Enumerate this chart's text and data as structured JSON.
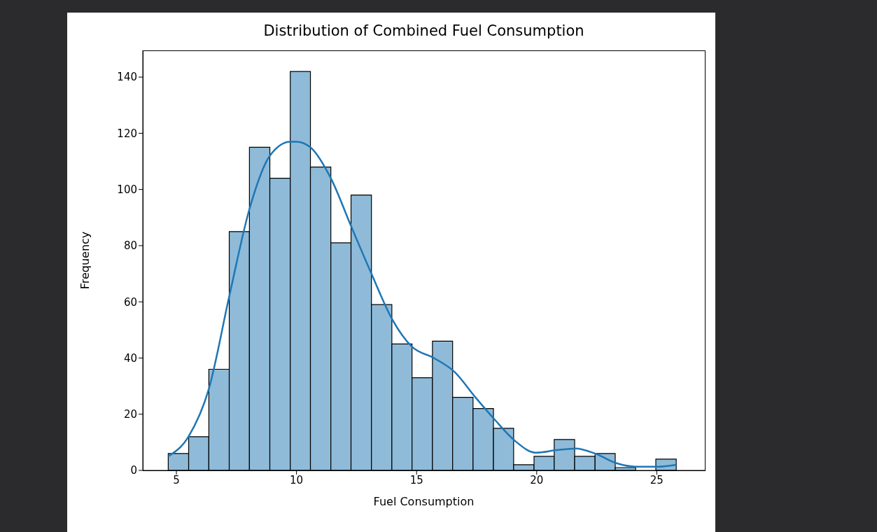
{
  "chart_data": {
    "type": "histogram",
    "title": "Distribution of Combined Fuel Consumption",
    "xlabel": "Fuel Consumption",
    "ylabel": "Frequency",
    "bins": [
      4.66,
      5.51,
      6.35,
      7.2,
      8.04,
      8.89,
      9.74,
      10.58,
      11.43,
      12.27,
      13.12,
      13.97,
      14.81,
      15.66,
      16.5,
      17.35,
      18.2,
      19.04,
      19.89,
      20.73,
      21.58,
      22.43,
      23.27,
      24.12,
      24.96,
      25.81
    ],
    "values": [
      6,
      12,
      36,
      85,
      115,
      104,
      142,
      108,
      81,
      98,
      59,
      45,
      33,
      46,
      26,
      22,
      15,
      2,
      5,
      11,
      5,
      6,
      1,
      0,
      4
    ],
    "color": "#8fbbd9",
    "xlim": [
      3.6,
      27.0
    ],
    "ylim": [
      0,
      149.5
    ],
    "xticks": [
      5,
      10,
      15,
      20,
      25
    ],
    "yticks": [
      0,
      20,
      40,
      60,
      80,
      100,
      120,
      140
    ],
    "series": [
      {
        "type": "line",
        "color": "#1f77b4",
        "x": [
          4.66,
          5.5,
          6.35,
          7.2,
          8.04,
          8.89,
          9.74,
          10.0,
          10.58,
          11.43,
          12.27,
          13.12,
          13.97,
          14.81,
          15.72,
          16.59,
          17.45,
          18.26,
          19.1,
          19.96,
          20.82,
          21.63,
          22.43,
          23.3,
          24.16,
          25.03,
          25.81
        ],
        "values": [
          5,
          12,
          29,
          62,
          93,
          112,
          117,
          117,
          115,
          104,
          87,
          70,
          54,
          44,
          40,
          35,
          26,
          18,
          10.5,
          6.3,
          7.2,
          7.8,
          6,
          2.6,
          1.3,
          1.3,
          2
        ]
      }
    ]
  }
}
